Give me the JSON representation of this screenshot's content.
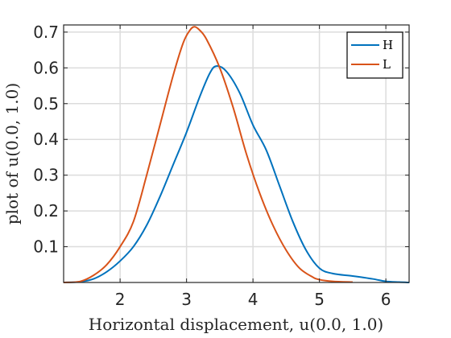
{
  "chart_data": {
    "type": "line",
    "title": "",
    "xlabel": "Horizontal displacement, u(0.0, 1.0)",
    "ylabel": "plot of u(0.0, 1.0)",
    "xlim": [
      1.15,
      6.35
    ],
    "ylim": [
      0,
      0.72
    ],
    "xticks": [
      "2",
      "3",
      "4",
      "5",
      "6"
    ],
    "yticks": [
      "0.1",
      "0.2",
      "0.3",
      "0.4",
      "0.5",
      "0.6",
      "0.7"
    ],
    "grid": true,
    "legend_position": "top-right",
    "series": [
      {
        "name": "H",
        "color": "#0072BD",
        "x": [
          1.15,
          1.4,
          1.6,
          1.8,
          2.0,
          2.2,
          2.4,
          2.6,
          2.8,
          3.0,
          3.2,
          3.35,
          3.45,
          3.6,
          3.8,
          4.0,
          4.2,
          4.4,
          4.6,
          4.8,
          5.0,
          5.2,
          5.5,
          5.8,
          6.0,
          6.2,
          6.35
        ],
        "y": [
          0.0,
          0.002,
          0.01,
          0.03,
          0.06,
          0.1,
          0.16,
          0.24,
          0.33,
          0.42,
          0.52,
          0.585,
          0.605,
          0.59,
          0.53,
          0.44,
          0.37,
          0.27,
          0.17,
          0.09,
          0.04,
          0.025,
          0.018,
          0.01,
          0.003,
          0.001,
          0.0
        ]
      },
      {
        "name": "L",
        "color": "#D95319",
        "x": [
          1.15,
          1.4,
          1.6,
          1.8,
          2.0,
          2.2,
          2.4,
          2.6,
          2.8,
          2.95,
          3.05,
          3.12,
          3.2,
          3.3,
          3.5,
          3.7,
          3.9,
          4.1,
          4.3,
          4.5,
          4.7,
          4.9,
          5.0,
          5.2,
          5.5
        ],
        "y": [
          0.0,
          0.003,
          0.02,
          0.05,
          0.1,
          0.17,
          0.3,
          0.44,
          0.58,
          0.67,
          0.705,
          0.715,
          0.705,
          0.68,
          0.6,
          0.49,
          0.36,
          0.25,
          0.16,
          0.09,
          0.04,
          0.015,
          0.008,
          0.003,
          0.001
        ]
      }
    ]
  }
}
